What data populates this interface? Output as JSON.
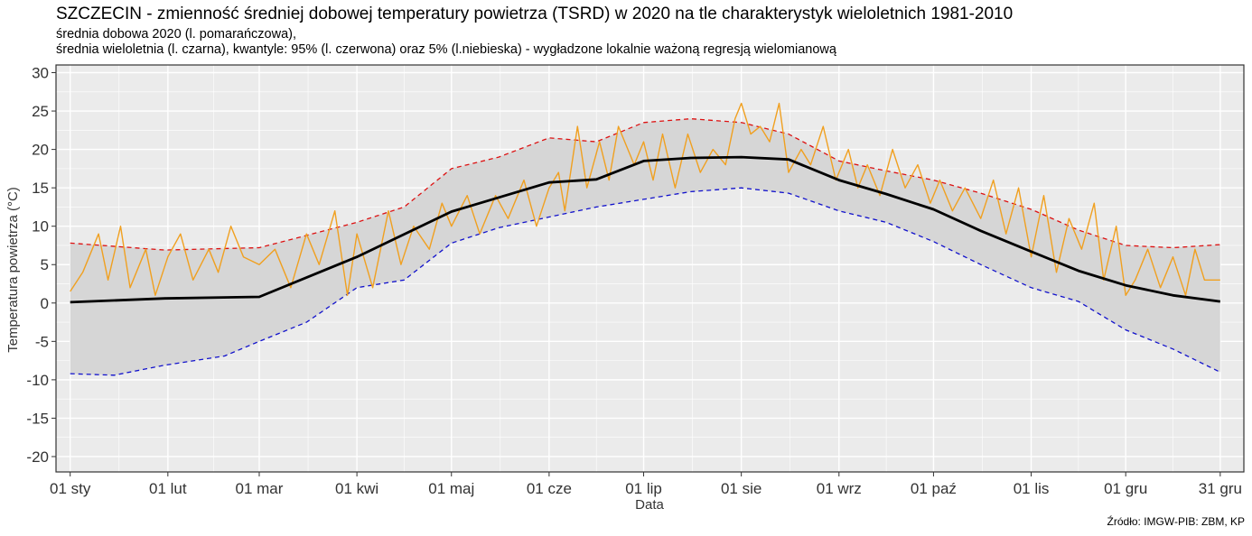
{
  "title": "SZCZECIN - zmienność średniej dobowej temperatury powietrza (TSRD) w 2020 na tle charakterystyk wieloletnich 1981-2010",
  "subtitle_line1": "średnia dobowa 2020 (l. pomarańczowa),",
  "subtitle_line2": "średnia wieloletnia (l. czarna), kwantyle: 95% (l. czerwona) oraz 5% (l.niebieska) - wygładzone lokalnie ważoną regresją wielomianową",
  "source": "Źródło: IMGW-PIB: ZBM, KP",
  "colors": {
    "daily_2020": "#f0a020",
    "long_term_mean": "#000000",
    "q95": "#dd1111",
    "q5": "#1111cc",
    "band": "#d6d6d6",
    "panel": "#ebebeb",
    "grid": "#ffffff"
  },
  "chart_data": {
    "type": "line",
    "xlabel": "Data",
    "ylabel": "Temperatura powietrza (°C)",
    "ylim": [
      -22,
      31
    ],
    "y_ticks": [
      -20,
      -15,
      -10,
      -5,
      0,
      5,
      10,
      15,
      20,
      25,
      30
    ],
    "x_ticks": [
      {
        "label": "01 sty",
        "day": 1
      },
      {
        "label": "01 lut",
        "day": 32
      },
      {
        "label": "01 mar",
        "day": 61
      },
      {
        "label": "01 kwi",
        "day": 92
      },
      {
        "label": "01 maj",
        "day": 122
      },
      {
        "label": "01 cze",
        "day": 153
      },
      {
        "label": "01 lip",
        "day": 183
      },
      {
        "label": "01 sie",
        "day": 214
      },
      {
        "label": "01 wrz",
        "day": 245
      },
      {
        "label": "01 paź",
        "day": 275
      },
      {
        "label": "01 lis",
        "day": 306
      },
      {
        "label": "01 gru",
        "day": 336
      },
      {
        "label": "31 gru",
        "day": 366
      }
    ],
    "xlim_days": [
      -3.5,
      373.5
    ],
    "grid": true,
    "series": [
      {
        "name": "średnia dobowa 2020",
        "key": "daily_2020",
        "x": [
          1,
          5,
          10,
          13,
          17,
          20,
          25,
          28,
          32,
          36,
          40,
          45,
          48,
          52,
          56,
          61,
          66,
          71,
          76,
          80,
          85,
          89,
          92,
          97,
          102,
          106,
          110,
          115,
          119,
          122,
          127,
          131,
          136,
          140,
          145,
          149,
          153,
          156,
          158,
          162,
          165,
          169,
          172,
          175,
          180,
          183,
          186,
          189,
          193,
          197,
          201,
          205,
          209,
          212,
          214,
          217,
          220,
          223,
          226,
          229,
          233,
          236,
          240,
          244,
          248,
          251,
          254,
          258,
          262,
          266,
          270,
          274,
          277,
          281,
          285,
          290,
          294,
          298,
          302,
          306,
          310,
          314,
          318,
          322,
          326,
          329,
          333,
          336,
          339,
          343,
          347,
          351,
          355,
          358,
          361,
          366
        ],
        "y": [
          1.5,
          4,
          9,
          3,
          10,
          2,
          7,
          1,
          6,
          9,
          3,
          7,
          4,
          10,
          6,
          5,
          7,
          2,
          9,
          5,
          12,
          1,
          9,
          2,
          12,
          5,
          10,
          7,
          13,
          10,
          14,
          9,
          14,
          11,
          16,
          10,
          15,
          17,
          12,
          23,
          15,
          21,
          16,
          23,
          18,
          21,
          16,
          22,
          15,
          22,
          17,
          20,
          18,
          24,
          26,
          22,
          23,
          21,
          26,
          17,
          20,
          18,
          23,
          16,
          20,
          15,
          18,
          14,
          20,
          15,
          18,
          13,
          16,
          12,
          15,
          11,
          16,
          9,
          15,
          6,
          14,
          4,
          11,
          7,
          13,
          3,
          10,
          1,
          3,
          7,
          2,
          6,
          1,
          7,
          3,
          3
        ]
      },
      {
        "name": "średnia wieloletnia",
        "key": "long_term_mean",
        "x": [
          1,
          31,
          61,
          92,
          122,
          153,
          168,
          183,
          198,
          214,
          229,
          245,
          260,
          275,
          290,
          306,
          321,
          336,
          351,
          366
        ],
        "y": [
          0.1,
          0.6,
          0.8,
          6.0,
          11.9,
          15.7,
          16.1,
          18.5,
          18.9,
          19.0,
          18.7,
          16.0,
          14.2,
          12.2,
          9.4,
          6.7,
          4.2,
          2.3,
          1.0,
          0.2
        ]
      },
      {
        "name": "kwantyl 95%",
        "key": "q95",
        "x": [
          1,
          31,
          61,
          92,
          107,
          122,
          137,
          153,
          168,
          183,
          198,
          214,
          229,
          245,
          260,
          275,
          290,
          306,
          321,
          336,
          351,
          366
        ],
        "y": [
          7.8,
          6.9,
          7.2,
          10.5,
          12.5,
          17.5,
          19.0,
          21.5,
          21.0,
          23.5,
          24.0,
          23.5,
          22.0,
          18.5,
          17.2,
          16.0,
          14.3,
          12.2,
          9.5,
          7.5,
          7.2,
          7.6
        ]
      },
      {
        "name": "kwantyl 5%",
        "key": "q5",
        "x": [
          1,
          15,
          31,
          50,
          61,
          76,
          92,
          107,
          122,
          137,
          153,
          168,
          183,
          198,
          214,
          229,
          245,
          260,
          275,
          290,
          306,
          321,
          336,
          351,
          366
        ],
        "y": [
          -9.2,
          -9.4,
          -8.1,
          -6.9,
          -5.0,
          -2.5,
          2.0,
          3.0,
          7.8,
          9.8,
          11.2,
          12.5,
          13.5,
          14.5,
          15.0,
          14.3,
          12.0,
          10.5,
          8.0,
          5.0,
          2.0,
          0.2,
          -3.5,
          -6.0,
          -9.0
        ]
      }
    ]
  }
}
